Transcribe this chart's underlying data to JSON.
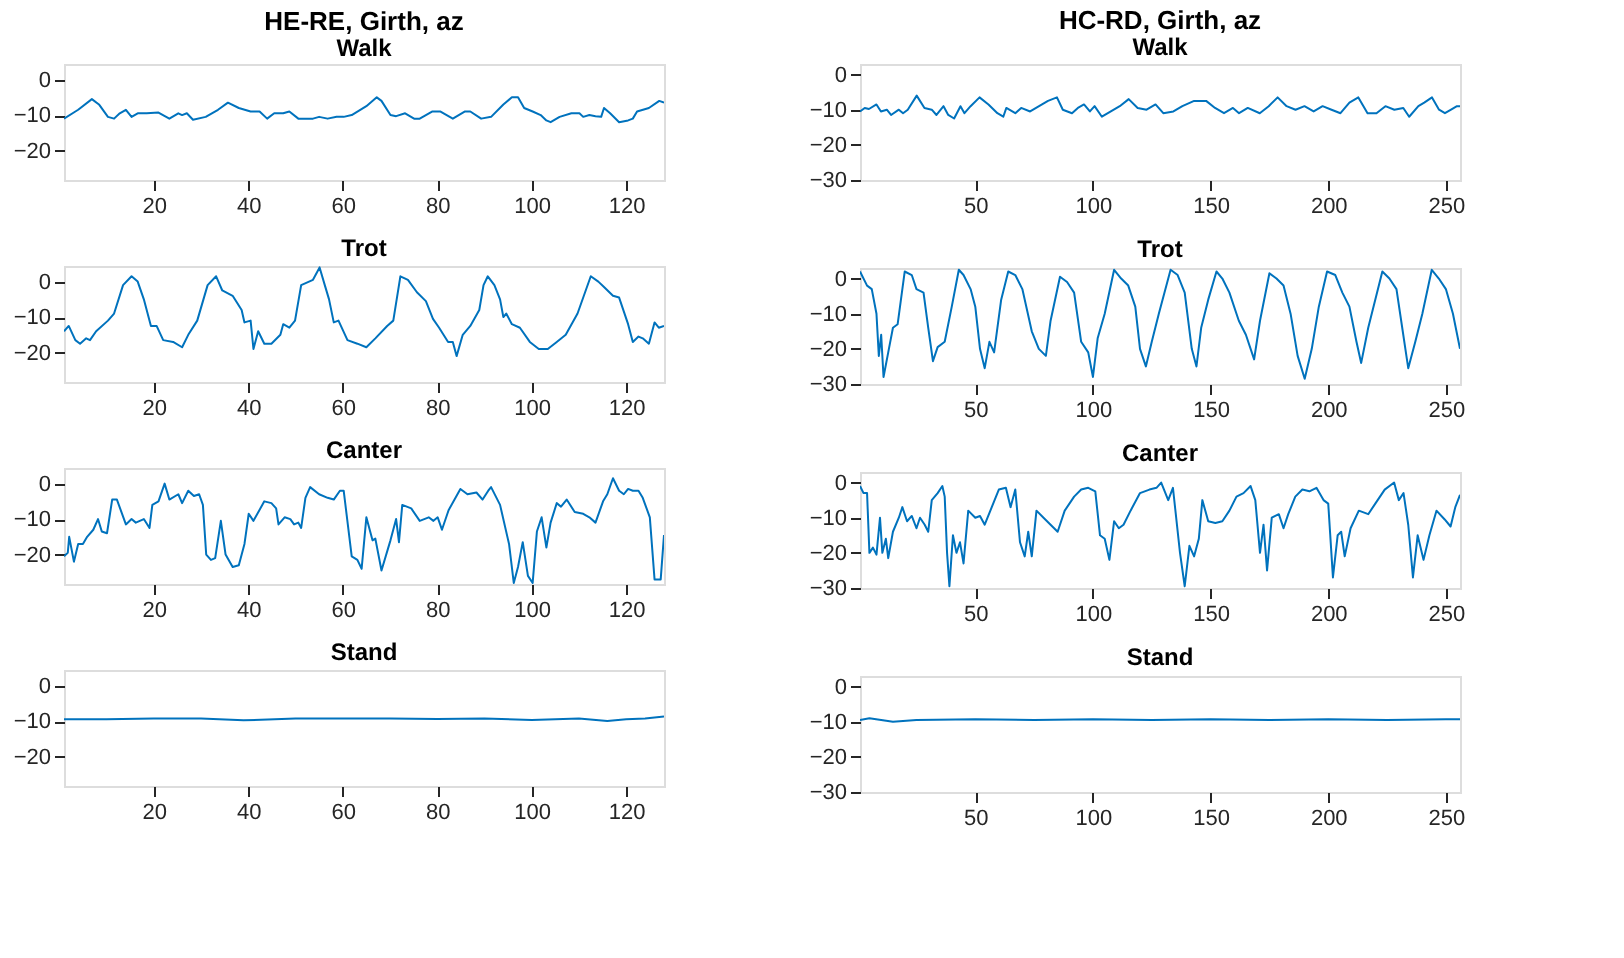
{
  "chart_data": [
    {
      "type": "line",
      "title": "HE-RE, Girth, az",
      "subtitle": "Walk",
      "xlim": [
        1,
        128
      ],
      "ylim": [
        -28.3,
        4.4
      ],
      "xticks": [
        20,
        40,
        60,
        80,
        100,
        120
      ],
      "yticks": [
        -20,
        -10,
        0
      ],
      "x": [
        1,
        4,
        6.9,
        8.4,
        10.3,
        11.6,
        12.8,
        14.1,
        15.3,
        16.6,
        18.5,
        21,
        23.3,
        25.2,
        26,
        27,
        28.3,
        31,
        33.6,
        35.7,
        38,
        40.5,
        42.4,
        44,
        45.5,
        47.4,
        48.7,
        50.6,
        53.7,
        55,
        56.8,
        58.7,
        60.2,
        61.9,
        65,
        67.2,
        68.2,
        70.1,
        71.3,
        73.2,
        75.1,
        76.3,
        78.9,
        80.7,
        83.3,
        85.8,
        87,
        89.3,
        91.4,
        94,
        95.8,
        97.1,
        98.4,
        100.2,
        101.9,
        103.1,
        104,
        105.9,
        108.4,
        110.1,
        110.9,
        112.2,
        113.5,
        114.7,
        115.3,
        116.6,
        118.5,
        120.4,
        121.4,
        122.3,
        124.8,
        127,
        128
      ],
      "series": [
        {
          "color": "#0072bd",
          "values": [
            -11,
            -8.5,
            -5.5,
            -7,
            -10.5,
            -11,
            -9.5,
            -8.5,
            -10.5,
            -9.5,
            -9.5,
            -9.3,
            -11,
            -9.5,
            -10,
            -9.5,
            -11.3,
            -10.5,
            -8.5,
            -6.5,
            -8,
            -9,
            -9,
            -11,
            -9.5,
            -9.5,
            -9,
            -11,
            -11,
            -10.5,
            -11,
            -10.5,
            -10.5,
            -10,
            -7.5,
            -5,
            -6,
            -10,
            -10.3,
            -9.5,
            -11,
            -11,
            -9,
            -9,
            -11,
            -9,
            -9,
            -11,
            -10.5,
            -7,
            -5,
            -5,
            -8,
            -9,
            -10,
            -11.5,
            -12,
            -10.5,
            -9.5,
            -9.5,
            -10.5,
            -10,
            -10.3,
            -10.5,
            -8,
            -9.5,
            -12,
            -11.5,
            -11,
            -9,
            -8,
            -6,
            -6.5
          ]
        }
      ]
    },
    {
      "type": "line",
      "title": "Trot",
      "xlim": [
        1,
        128
      ],
      "ylim": [
        -28.3,
        4.4
      ],
      "xticks": [
        20,
        40,
        60,
        80,
        100,
        120
      ],
      "yticks": [
        -20,
        -10,
        0
      ],
      "x": [
        1,
        2,
        3.4,
        4.4,
        5.7,
        6.5,
        7.8,
        10.3,
        11.6,
        13.5,
        15.3,
        16.6,
        17.9,
        19.4,
        20.6,
        22,
        24.1,
        26,
        27.3,
        29.2,
        31.4,
        33.2,
        34.5,
        36.7,
        38.6,
        39.2,
        40.5,
        41.1,
        42.1,
        43.4,
        44.9,
        46.8,
        47.4,
        48.7,
        49.9,
        51.2,
        53.7,
        55.1,
        56.2,
        57.1,
        58.1,
        59.1,
        61,
        63.1,
        65,
        66.9,
        69.4,
        70.7,
        72.2,
        73.8,
        75.7,
        77.6,
        79.1,
        80.4,
        82.3,
        83.3,
        84.1,
        85.4,
        87,
        88.9,
        89.8,
        90.7,
        92.1,
        93.3,
        94,
        94.6,
        95.8,
        97.5,
        99.6,
        101.5,
        103.4,
        105.3,
        107.2,
        109.7,
        112.5,
        114.1,
        115.3,
        117.2,
        118.5,
        120.4,
        121.4,
        122.6,
        123.5,
        124.8,
        126,
        126.9,
        128
      ],
      "series": [
        {
          "color": "#0072bd",
          "values": [
            -14,
            -12.5,
            -16.5,
            -17.5,
            -16,
            -16.5,
            -14,
            -11,
            -9,
            -1,
            1.5,
            0,
            -5,
            -12.5,
            -12.5,
            -16.5,
            -17,
            -18.5,
            -15,
            -11,
            -1,
            1.5,
            -2.5,
            -4,
            -8,
            -11.5,
            -11,
            -19,
            -14,
            -17.5,
            -17.5,
            -15,
            -12,
            -13,
            -11,
            -1,
            0.5,
            4,
            -1,
            -5,
            -11.5,
            -11,
            -16.5,
            -17.5,
            -18.5,
            -16,
            -12.5,
            -11,
            1.5,
            0.5,
            -3,
            -5.5,
            -10.5,
            -13,
            -17,
            -17,
            -21,
            -15,
            -12.5,
            -8,
            -1,
            1.5,
            -1,
            -5,
            -10,
            -9,
            -12,
            -13,
            -17,
            -19,
            -19,
            -17,
            -15,
            -9,
            1.5,
            0,
            -1.5,
            -4,
            -4.5,
            -12,
            -17,
            -15.5,
            -16,
            -17.5,
            -11.5,
            -13,
            -12.5
          ]
        }
      ]
    },
    {
      "type": "line",
      "title": "Canter",
      "xlim": [
        1,
        128
      ],
      "ylim": [
        -28.3,
        4.4
      ],
      "xticks": [
        20,
        40,
        60,
        80,
        100,
        120
      ],
      "yticks": [
        -20,
        -10,
        0
      ],
      "x": [
        1,
        1.8,
        2.1,
        3.1,
        4,
        5,
        5.9,
        7.2,
        8.2,
        9,
        10.1,
        11.2,
        12.2,
        14.1,
        15.3,
        16.2,
        17.9,
        19.1,
        19.7,
        21,
        22.3,
        23.3,
        25.2,
        26,
        27.3,
        28.5,
        29.6,
        30.4,
        31.1,
        32.1,
        33,
        34.2,
        35.2,
        36.7,
        38,
        39.2,
        40.1,
        41.1,
        43.4,
        44.9,
        45.9,
        46.4,
        47.7,
        48.9,
        49.7,
        50.6,
        51.2,
        52.1,
        53.1,
        55,
        56.8,
        58.1,
        59.4,
        60.2,
        61.9,
        63.1,
        64,
        65,
        66.3,
        66.9,
        68.2,
        70.1,
        71.3,
        71.9,
        72.6,
        74.5,
        76.3,
        78.2,
        79.2,
        80.1,
        81,
        82.4,
        84.9,
        86.4,
        88.3,
        89.6,
        90.8,
        91.4,
        93.3,
        95.2,
        96.2,
        97.1,
        98.1,
        99.2,
        100.2,
        101.1,
        102.1,
        103.1,
        104,
        105.3,
        106.2,
        107.4,
        109.1,
        110.9,
        112.2,
        113.5,
        115.1,
        116,
        117.2,
        118.5,
        119.5,
        120.4,
        121.4,
        122.6,
        123.5,
        125,
        126,
        127.3,
        128
      ],
      "series": [
        {
          "color": "#0072bd",
          "values": [
            -20.5,
            -19.5,
            -15,
            -22,
            -17,
            -17,
            -15,
            -13,
            -10,
            -13.5,
            -14,
            -4.5,
            -4.5,
            -11.5,
            -10,
            -11,
            -10,
            -12.5,
            -6,
            -5,
            0,
            -4.5,
            -3,
            -5.5,
            -2,
            -3.5,
            -3,
            -6,
            -20,
            -21.5,
            -21,
            -10.5,
            -20,
            -23.5,
            -23,
            -17,
            -8.5,
            -10.5,
            -5,
            -5.5,
            -7,
            -11.5,
            -9.5,
            -10,
            -11.5,
            -11,
            -12.5,
            -4,
            -1,
            -3,
            -4,
            -4.5,
            -2,
            -2,
            -20.5,
            -21.5,
            -24,
            -9.5,
            -16,
            -15.5,
            -24.5,
            -16,
            -10,
            -16.5,
            -6,
            -7,
            -10.5,
            -9.5,
            -10.5,
            -9.5,
            -13,
            -7.5,
            -1.5,
            -3,
            -2.5,
            -4.5,
            -2,
            -1,
            -6,
            -17,
            -28,
            -23.5,
            -16.5,
            -26,
            -28,
            -13.5,
            -9.5,
            -18,
            -11,
            -5.5,
            -6.5,
            -4.5,
            -8,
            -8.5,
            -9.5,
            -11,
            -5,
            -3,
            1.5,
            -2,
            -3,
            -1.5,
            -2,
            -2,
            -4,
            -9.5,
            -27,
            -27,
            -14.5
          ]
        }
      ]
    },
    {
      "type": "line",
      "title": "Stand",
      "xlim": [
        1,
        128
      ],
      "ylim": [
        -28.3,
        4.4
      ],
      "xticks": [
        20,
        40,
        60,
        80,
        100,
        120
      ],
      "yticks": [
        -20,
        -10,
        0
      ],
      "x": [
        1,
        10,
        20,
        30,
        39,
        50,
        60,
        70,
        80,
        90,
        100,
        110,
        116,
        120,
        124,
        128
      ],
      "series": [
        {
          "color": "#0072bd",
          "values": [
            -9.5,
            -9.5,
            -9.3,
            -9.3,
            -9.8,
            -9.3,
            -9.3,
            -9.3,
            -9.4,
            -9.3,
            -9.7,
            -9.3,
            -10,
            -9.5,
            -9.3,
            -8.7
          ]
        }
      ]
    },
    {
      "type": "line",
      "title": "HC-RD, Girth, az",
      "subtitle": "Walk",
      "xlim": [
        1,
        256
      ],
      "ylim": [
        -30,
        3
      ],
      "xticks": [
        50,
        100,
        150,
        200,
        250
      ],
      "yticks": [
        -30,
        -20,
        -10,
        0
      ],
      "x": [
        1,
        3,
        4.8,
        8,
        9.9,
        12.4,
        14.2,
        17.5,
        19.3,
        21.3,
        25.1,
        28.4,
        31.5,
        33.5,
        36.5,
        38.5,
        41,
        43.7,
        45.4,
        48,
        51.8,
        55.6,
        59.4,
        61.9,
        63.2,
        67,
        69.5,
        73.3,
        77.1,
        80.9,
        84.7,
        87.2,
        91.1,
        93.6,
        96.2,
        98.7,
        100.7,
        103.8,
        107.6,
        111.4,
        115.2,
        119,
        122.8,
        126.6,
        129.9,
        134.2,
        138,
        143,
        148.1,
        151.9,
        155.7,
        159.5,
        162.1,
        165.8,
        170.9,
        174.7,
        178.5,
        182.3,
        186.1,
        189.9,
        193.8,
        197.6,
        201.4,
        205.2,
        209,
        212.8,
        216.7,
        220.5,
        224.3,
        228.1,
        231.9,
        234.4,
        238.3,
        240.8,
        244.1,
        247.1,
        249.6,
        252.2,
        254.7,
        256
      ],
      "series": [
        {
          "color": "#0072bd",
          "values": [
            -10.5,
            -9.5,
            -9.8,
            -8.5,
            -10.5,
            -10,
            -11.5,
            -10,
            -11,
            -10,
            -6,
            -9.5,
            -10,
            -11.5,
            -9,
            -11.5,
            -12.5,
            -9,
            -11,
            -9,
            -6.5,
            -8.5,
            -11,
            -12,
            -9.5,
            -11,
            -9.5,
            -10.5,
            -9,
            -7.5,
            -6.5,
            -10,
            -11,
            -9.5,
            -8.5,
            -10.5,
            -9,
            -12,
            -10.5,
            -9,
            -7,
            -9.5,
            -10,
            -8.5,
            -11,
            -10.5,
            -9,
            -7.5,
            -7.5,
            -9.5,
            -11,
            -9.5,
            -11,
            -9.5,
            -11,
            -9,
            -6.5,
            -9,
            -10,
            -9,
            -10.5,
            -9,
            -10,
            -11,
            -8,
            -6.5,
            -11,
            -11,
            -9,
            -10,
            -9.5,
            -12,
            -9,
            -8,
            -6.5,
            -10,
            -11,
            -10,
            -9,
            -9
          ]
        }
      ]
    },
    {
      "type": "line",
      "title": "Trot",
      "xlim": [
        1,
        256
      ],
      "ylim": [
        -30,
        3
      ],
      "xticks": [
        50,
        100,
        150,
        200,
        250
      ],
      "yticks": [
        -30,
        -20,
        -10,
        0
      ],
      "x": [
        1,
        4,
        6,
        8,
        9,
        10,
        11,
        13,
        15,
        17,
        20,
        23,
        25,
        28,
        30,
        32,
        34,
        37,
        40,
        43,
        45,
        48,
        50,
        52,
        54,
        56,
        58,
        61,
        64,
        67,
        70,
        74,
        77,
        80,
        82,
        86,
        89,
        92,
        95,
        98,
        100,
        102,
        105,
        109,
        112,
        115,
        118,
        120,
        122.5,
        125,
        128,
        133,
        136,
        139,
        142,
        144,
        146,
        149,
        152.5,
        155,
        158,
        162,
        165,
        168.5,
        171,
        175,
        178,
        181,
        184,
        187,
        190,
        193,
        196,
        199.5,
        203,
        206,
        209,
        212,
        214,
        217,
        223,
        226,
        229,
        231,
        234,
        237,
        240,
        244,
        247,
        250,
        253,
        256
      ],
      "series": [
        {
          "color": "#0072bd",
          "values": [
            2,
            -2,
            -3,
            -10,
            -22,
            -16,
            -28,
            -21,
            -14,
            -13,
            2,
            1,
            -3,
            -4,
            -14,
            -23.5,
            -19.5,
            -18,
            -8,
            2.5,
            1,
            -3,
            -8,
            -20,
            -25.5,
            -18,
            -21,
            -6,
            2,
            1,
            -3,
            -15,
            -20,
            -22,
            -12,
            0.5,
            -1,
            -4,
            -18,
            -21,
            -28,
            -17,
            -10,
            2.5,
            0,
            -2,
            -8,
            -20,
            -25,
            -18,
            -10,
            2.5,
            1,
            -4,
            -20,
            -25,
            -14,
            -6,
            2,
            0,
            -4,
            -12,
            -16,
            -23,
            -12,
            1.5,
            0,
            -2,
            -10,
            -22,
            -28.5,
            -20,
            -8,
            2,
            1,
            -4,
            -8,
            -18,
            -24,
            -14,
            2,
            0,
            -3,
            -12,
            -25.5,
            -18,
            -10,
            2.5,
            0,
            -3,
            -10,
            -20
          ]
        }
      ]
    },
    {
      "type": "line",
      "title": "Canter",
      "xlim": [
        1,
        256
      ],
      "ylim": [
        -30,
        3
      ],
      "xticks": [
        50,
        100,
        150,
        200,
        250
      ],
      "yticks": [
        -30,
        -20,
        -10,
        0
      ],
      "x": [
        1,
        2.5,
        4,
        5,
        6.5,
        8,
        9.5,
        10.5,
        12,
        13,
        15,
        17.5,
        19,
        21,
        23,
        25,
        26.5,
        28.5,
        30,
        31.5,
        34,
        36,
        37,
        38,
        39,
        40.5,
        42,
        43.5,
        45,
        47,
        50,
        52,
        54,
        57,
        60,
        63,
        65,
        67,
        69,
        71,
        72.5,
        74,
        76,
        79,
        82,
        85,
        88,
        92,
        95,
        98,
        101,
        103,
        105,
        107,
        109,
        111,
        113,
        116,
        120,
        124,
        127,
        129,
        132,
        134,
        137,
        139,
        141,
        143,
        145,
        146.5,
        149,
        152,
        155,
        158,
        161,
        164,
        167,
        169,
        171,
        172.5,
        174,
        176,
        179,
        181,
        183,
        186,
        189,
        192,
        195,
        198,
        200,
        202,
        204,
        205.5,
        207,
        209.5,
        213,
        217,
        220,
        224,
        228,
        230,
        232,
        234,
        236,
        238,
        240.5,
        243,
        246,
        249.5,
        252,
        254,
        256
      ],
      "series": [
        {
          "color": "#0072bd",
          "values": [
            -1,
            -3,
            -3,
            -20,
            -18.5,
            -20.5,
            -10,
            -20,
            -16,
            -21.5,
            -14,
            -10,
            -7,
            -11,
            -9.5,
            -13,
            -10,
            -12,
            -14,
            -5,
            -3,
            -1,
            -4,
            -20,
            -29.5,
            -15,
            -20,
            -17,
            -23,
            -8,
            -10,
            -9.5,
            -12,
            -7,
            -2,
            -1.5,
            -7,
            -2,
            -17,
            -21,
            -14,
            -21,
            -8,
            -10,
            -12,
            -14,
            -8,
            -4,
            -2,
            -1.5,
            -2.5,
            -15,
            -16,
            -22,
            -11,
            -13,
            -12,
            -8,
            -3,
            -2,
            -1.5,
            0,
            -5,
            -1.5,
            -20,
            -29.5,
            -18,
            -21,
            -16,
            -5,
            -11,
            -11.5,
            -11,
            -8,
            -4,
            -3,
            -1,
            -5,
            -20,
            -12,
            -25,
            -10,
            -9,
            -13,
            -9,
            -4,
            -2,
            -2.5,
            -1.5,
            -5,
            -6,
            -27,
            -15,
            -14,
            -21,
            -13,
            -8,
            -9,
            -6,
            -2,
            0,
            -5,
            -3,
            -12,
            -27,
            -15,
            -22,
            -15,
            -8,
            -10.5,
            -12.5,
            -7,
            -3.5
          ]
        }
      ]
    },
    {
      "type": "line",
      "title": "Stand",
      "xlim": [
        1,
        256
      ],
      "ylim": [
        -30,
        3
      ],
      "xticks": [
        50,
        100,
        150,
        200,
        250
      ],
      "yticks": [
        -30,
        -20,
        -10,
        0
      ],
      "x": [
        1,
        5,
        10,
        15,
        25,
        50,
        75,
        100,
        125,
        150,
        175,
        200,
        225,
        250,
        256
      ],
      "series": [
        {
          "color": "#0072bd",
          "values": [
            -9.5,
            -9,
            -9.5,
            -10,
            -9.5,
            -9.3,
            -9.5,
            -9.3,
            -9.5,
            -9.3,
            -9.5,
            -9.3,
            -9.5,
            -9.3,
            -9.3
          ]
        }
      ]
    }
  ]
}
